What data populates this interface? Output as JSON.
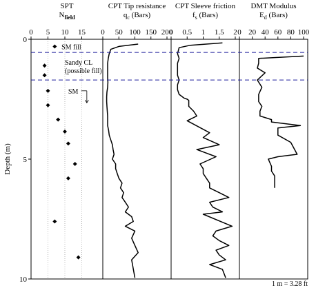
{
  "chart_data": [
    {
      "type": "scatter",
      "title": "SPT",
      "subtitle_main": "N",
      "subtitle_sub": "field",
      "x_ticks": [
        "0",
        "5",
        "10",
        "15"
      ],
      "xlim": [
        0,
        20
      ],
      "ylim": [
        0,
        10
      ],
      "ylabel": "Depth (m)",
      "y_ticks": [
        "0",
        "5",
        "10"
      ],
      "points": [
        {
          "x": 7,
          "y": 0.3
        },
        {
          "x": 4,
          "y": 1.1
        },
        {
          "x": 4,
          "y": 1.5
        },
        {
          "x": 5,
          "y": 2.15
        },
        {
          "x": 5,
          "y": 2.75
        },
        {
          "x": 8,
          "y": 3.35
        },
        {
          "x": 10,
          "y": 3.85
        },
        {
          "x": 11,
          "y": 4.35
        },
        {
          "x": 13,
          "y": 5.2
        },
        {
          "x": 11,
          "y": 5.8
        },
        {
          "x": 7,
          "y": 7.6
        },
        {
          "x": 14,
          "y": 9.1
        }
      ],
      "annotations": [
        {
          "text": "SM fill",
          "x": 9,
          "y": 0.3
        },
        {
          "text": "Sandy CL",
          "x": 10,
          "y": 0.95
        },
        {
          "text": "(possible fill)",
          "x": 10,
          "y": 1.3
        },
        {
          "text": "SM",
          "x": 11,
          "y": 2.15
        }
      ]
    },
    {
      "type": "line",
      "title": "CPT Tip resistance",
      "subtitle_main": "q",
      "subtitle_sub": "c",
      "subtitle_unit": " (Bars)",
      "x_ticks": [
        "0",
        "50",
        "100",
        "150",
        "200"
      ],
      "xlim": [
        0,
        200
      ],
      "ylim": [
        0,
        10
      ],
      "series": [
        {
          "x": [
            110,
            50,
            25,
            20,
            17,
            15,
            15,
            15,
            15,
            16,
            15,
            13,
            12,
            12,
            13,
            14,
            15,
            15,
            15,
            18,
            20,
            25,
            30,
            32,
            35,
            30,
            40,
            40,
            45,
            50,
            60,
            55,
            65,
            60,
            70,
            80,
            70,
            90,
            95,
            70,
            100,
            90,
            100,
            110,
            90,
            100
          ],
          "y": [
            0.2,
            0.3,
            0.42,
            0.6,
            0.8,
            1.0,
            1.2,
            1.4,
            1.6,
            1.8,
            2.0,
            2.2,
            2.4,
            2.6,
            2.8,
            3.0,
            3.2,
            3.4,
            3.6,
            3.8,
            4.0,
            4.2,
            4.4,
            4.6,
            4.8,
            5.0,
            5.2,
            5.4,
            5.6,
            5.8,
            6.0,
            6.2,
            6.4,
            6.6,
            6.8,
            7.0,
            7.2,
            7.4,
            7.6,
            7.8,
            8.0,
            8.3,
            8.6,
            8.9,
            9.2,
            9.95
          ]
        }
      ]
    },
    {
      "type": "line",
      "title": "CPT Sleeve friction",
      "subtitle_main": "f",
      "subtitle_sub": "s",
      "subtitle_unit": " (Bars)",
      "x_ticks": [
        "0",
        "0.5",
        "1",
        "1.5",
        "2"
      ],
      "xlim": [
        0,
        2
      ],
      "ylim": [
        0,
        10
      ],
      "series": [
        {
          "x": [
            1.6,
            0.6,
            0.25,
            0.2,
            0.25,
            0.2,
            0.2,
            0.2,
            0.25,
            0.2,
            0.2,
            0.25,
            0.35,
            0.4,
            0.5,
            0.55,
            0.55,
            0.7,
            0.8,
            0.5,
            1.2,
            1.0,
            1.5,
            0.8,
            1.4,
            0.9,
            1.0,
            1.0,
            1.1,
            1.2,
            1.2,
            1.5,
            1.8,
            1.2,
            1.3,
            1.6,
            1.0,
            1.9,
            1.4,
            1.3,
            1.5,
            1.8,
            1.4,
            1.5,
            1.7,
            1.2,
            1.6,
            1.7
          ],
          "y": [
            0.15,
            0.25,
            0.35,
            0.6,
            0.8,
            1.0,
            1.2,
            1.5,
            1.7,
            1.9,
            2.1,
            2.3,
            2.4,
            2.45,
            2.5,
            2.55,
            2.8,
            3.0,
            3.2,
            3.4,
            3.9,
            4.1,
            4.4,
            4.6,
            4.9,
            5.2,
            5.4,
            5.6,
            5.8,
            6.0,
            6.2,
            6.4,
            6.6,
            6.8,
            7.0,
            7.2,
            7.3,
            7.8,
            8.0,
            8.2,
            8.4,
            8.6,
            8.8,
            9.0,
            9.2,
            9.4,
            9.6,
            9.95
          ]
        }
      ]
    },
    {
      "type": "line",
      "title": "DMT Modulus",
      "subtitle_main": "E",
      "subtitle_sub": "d",
      "subtitle_unit": " (Bars)",
      "x_ticks": [
        "0",
        "20",
        "40",
        "60",
        "80",
        "100"
      ],
      "xlim": [
        0,
        100
      ],
      "ylim": [
        0,
        10
      ],
      "series": [
        {
          "x": [
            100,
            30,
            30,
            28,
            40,
            28,
            35,
            30,
            30,
            35,
            32,
            32,
            50,
            50,
            95,
            60,
            60,
            80,
            90,
            60,
            45,
            50,
            50,
            55,
            55,
            55
          ],
          "y": [
            0.7,
            0.8,
            1.0,
            1.2,
            1.4,
            1.7,
            2.0,
            2.3,
            2.6,
            2.8,
            3.0,
            3.2,
            3.35,
            3.45,
            3.6,
            3.7,
            4.0,
            4.3,
            4.8,
            4.9,
            5.0,
            5.3,
            5.5,
            5.7,
            6.0,
            6.2
          ]
        }
      ]
    }
  ],
  "layer_boundaries": [
    0.55,
    1.7
  ],
  "scale_note": "1 m = 3.28 ft"
}
